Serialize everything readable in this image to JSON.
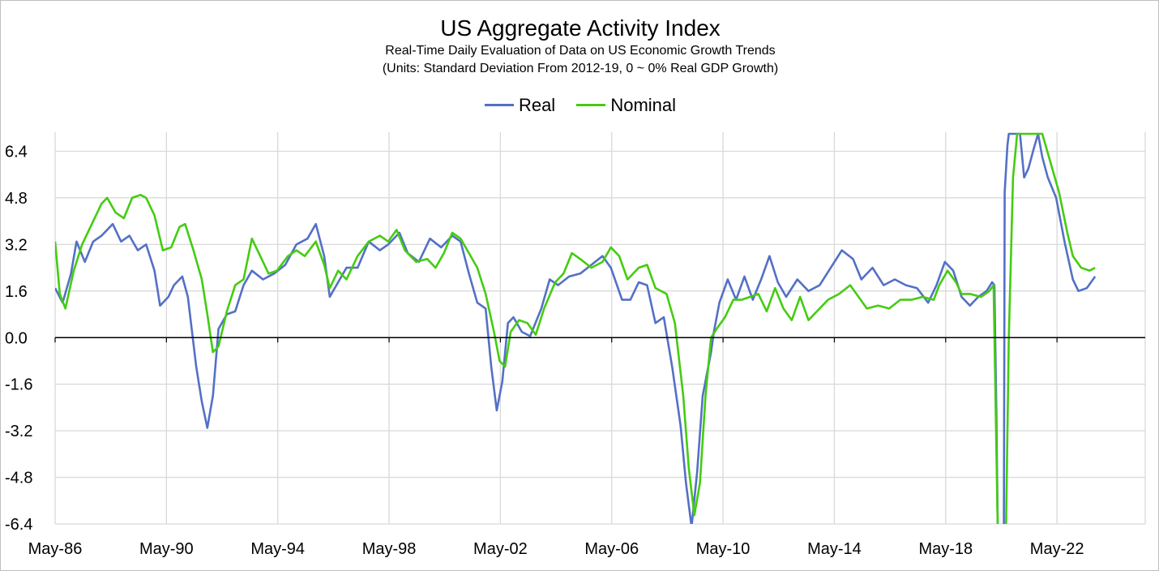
{
  "chart_data": {
    "type": "line",
    "title": "US Aggregate Activity Index",
    "subtitle": "Real-Time Daily Evaluation of Data on US Economic Growth Trends",
    "units_note": "(Units: Standard Deviation From 2012-19, 0 ~ 0% Real GDP Growth)",
    "xlabel": "",
    "ylabel": "",
    "x_ticks": [
      "May-86",
      "May-90",
      "May-94",
      "May-98",
      "May-02",
      "May-06",
      "May-10",
      "May-14",
      "May-18",
      "May-22"
    ],
    "x_tick_years": [
      1986.33,
      1990.33,
      1994.33,
      1998.33,
      2002.33,
      2006.33,
      2010.33,
      2014.33,
      2018.33,
      2022.33
    ],
    "xlim": [
      1986.33,
      2025.5
    ],
    "y_ticks": [
      "6.4",
      "4.8",
      "3.2",
      "1.6",
      "0.0",
      "-1.6",
      "-3.2",
      "-4.8",
      "-6.4"
    ],
    "ylim": [
      -6.4,
      7.0
    ],
    "grid": true,
    "legend_position": "top-center",
    "series": [
      {
        "name": "Real",
        "color": "#5470C6",
        "points": [
          [
            1986.33,
            1.7
          ],
          [
            1986.6,
            1.2
          ],
          [
            1986.9,
            2.2
          ],
          [
            1987.1,
            3.3
          ],
          [
            1987.4,
            2.6
          ],
          [
            1987.7,
            3.3
          ],
          [
            1988.0,
            3.5
          ],
          [
            1988.4,
            3.9
          ],
          [
            1988.7,
            3.3
          ],
          [
            1989.0,
            3.5
          ],
          [
            1989.3,
            3.0
          ],
          [
            1989.6,
            3.2
          ],
          [
            1989.9,
            2.3
          ],
          [
            1990.1,
            1.1
          ],
          [
            1990.4,
            1.4
          ],
          [
            1990.6,
            1.8
          ],
          [
            1990.9,
            2.1
          ],
          [
            1991.1,
            1.4
          ],
          [
            1991.4,
            -1.0
          ],
          [
            1991.6,
            -2.2
          ],
          [
            1991.8,
            -3.1
          ],
          [
            1992.0,
            -2.0
          ],
          [
            1992.2,
            0.3
          ],
          [
            1992.5,
            0.8
          ],
          [
            1992.8,
            0.9
          ],
          [
            1993.1,
            1.8
          ],
          [
            1993.4,
            2.3
          ],
          [
            1993.8,
            2.0
          ],
          [
            1994.2,
            2.2
          ],
          [
            1994.6,
            2.5
          ],
          [
            1995.0,
            3.2
          ],
          [
            1995.4,
            3.4
          ],
          [
            1995.7,
            3.9
          ],
          [
            1996.0,
            2.8
          ],
          [
            1996.2,
            1.4
          ],
          [
            1996.5,
            1.9
          ],
          [
            1996.8,
            2.4
          ],
          [
            1997.2,
            2.4
          ],
          [
            1997.6,
            3.3
          ],
          [
            1998.0,
            3.0
          ],
          [
            1998.3,
            3.2
          ],
          [
            1998.7,
            3.6
          ],
          [
            1999.0,
            2.9
          ],
          [
            1999.4,
            2.6
          ],
          [
            1999.8,
            3.4
          ],
          [
            2000.2,
            3.1
          ],
          [
            2000.6,
            3.5
          ],
          [
            2000.9,
            3.3
          ],
          [
            2001.2,
            2.2
          ],
          [
            2001.5,
            1.2
          ],
          [
            2001.8,
            1.0
          ],
          [
            2002.0,
            -1.0
          ],
          [
            2002.2,
            -2.5
          ],
          [
            2002.4,
            -1.5
          ],
          [
            2002.6,
            0.5
          ],
          [
            2002.8,
            0.7
          ],
          [
            2003.1,
            0.2
          ],
          [
            2003.4,
            0.05
          ],
          [
            2003.8,
            1.0
          ],
          [
            2004.1,
            2.0
          ],
          [
            2004.4,
            1.8
          ],
          [
            2004.8,
            2.1
          ],
          [
            2005.2,
            2.2
          ],
          [
            2005.6,
            2.5
          ],
          [
            2006.0,
            2.8
          ],
          [
            2006.3,
            2.4
          ],
          [
            2006.7,
            1.3
          ],
          [
            2007.0,
            1.3
          ],
          [
            2007.3,
            1.9
          ],
          [
            2007.6,
            1.8
          ],
          [
            2007.9,
            0.5
          ],
          [
            2008.2,
            0.7
          ],
          [
            2008.5,
            -1.0
          ],
          [
            2008.8,
            -3.0
          ],
          [
            2009.0,
            -5.0
          ],
          [
            2009.2,
            -6.5
          ],
          [
            2009.4,
            -4.6
          ],
          [
            2009.6,
            -2.0
          ],
          [
            2009.9,
            -0.5
          ],
          [
            2010.0,
            0.2
          ],
          [
            2010.2,
            1.2
          ],
          [
            2010.5,
            2.0
          ],
          [
            2010.8,
            1.3
          ],
          [
            2011.1,
            2.1
          ],
          [
            2011.4,
            1.3
          ],
          [
            2011.7,
            2.0
          ],
          [
            2012.0,
            2.8
          ],
          [
            2012.3,
            1.9
          ],
          [
            2012.6,
            1.4
          ],
          [
            2013.0,
            2.0
          ],
          [
            2013.4,
            1.6
          ],
          [
            2013.8,
            1.8
          ],
          [
            2014.2,
            2.4
          ],
          [
            2014.6,
            3.0
          ],
          [
            2015.0,
            2.7
          ],
          [
            2015.3,
            2.0
          ],
          [
            2015.7,
            2.4
          ],
          [
            2016.1,
            1.8
          ],
          [
            2016.5,
            2.0
          ],
          [
            2016.9,
            1.8
          ],
          [
            2017.3,
            1.7
          ],
          [
            2017.7,
            1.2
          ],
          [
            2018.0,
            1.8
          ],
          [
            2018.3,
            2.6
          ],
          [
            2018.6,
            2.3
          ],
          [
            2018.9,
            1.4
          ],
          [
            2019.2,
            1.1
          ],
          [
            2019.5,
            1.4
          ],
          [
            2019.8,
            1.6
          ],
          [
            2020.0,
            1.9
          ],
          [
            2020.08,
            1.8
          ],
          [
            2020.15,
            -2.5
          ],
          [
            2020.2,
            -6.5
          ],
          [
            2020.3,
            -6.5
          ],
          [
            2020.42,
            -6.5
          ],
          [
            2020.45,
            5.0
          ],
          [
            2020.55,
            6.6
          ],
          [
            2020.6,
            7.0
          ],
          [
            2021.0,
            7.0
          ],
          [
            2021.15,
            5.5
          ],
          [
            2021.3,
            5.8
          ],
          [
            2021.5,
            6.5
          ],
          [
            2021.65,
            7.0
          ],
          [
            2021.8,
            6.2
          ],
          [
            2022.0,
            5.5
          ],
          [
            2022.3,
            4.8
          ],
          [
            2022.6,
            3.3
          ],
          [
            2022.9,
            2.0
          ],
          [
            2023.1,
            1.6
          ],
          [
            2023.4,
            1.7
          ],
          [
            2023.7,
            2.1
          ]
        ]
      },
      {
        "name": "Nominal",
        "color": "#44CC11",
        "points": [
          [
            1986.33,
            3.3
          ],
          [
            1986.5,
            1.5
          ],
          [
            1986.7,
            1.0
          ],
          [
            1987.0,
            2.3
          ],
          [
            1987.3,
            3.2
          ],
          [
            1987.7,
            4.0
          ],
          [
            1988.0,
            4.6
          ],
          [
            1988.2,
            4.8
          ],
          [
            1988.5,
            4.3
          ],
          [
            1988.8,
            4.1
          ],
          [
            1989.1,
            4.8
          ],
          [
            1989.4,
            4.9
          ],
          [
            1989.6,
            4.8
          ],
          [
            1989.9,
            4.2
          ],
          [
            1990.2,
            3.0
          ],
          [
            1990.5,
            3.1
          ],
          [
            1990.8,
            3.8
          ],
          [
            1991.0,
            3.9
          ],
          [
            1991.3,
            3.0
          ],
          [
            1991.6,
            2.0
          ],
          [
            1991.8,
            0.8
          ],
          [
            1992.0,
            -0.5
          ],
          [
            1992.2,
            -0.3
          ],
          [
            1992.5,
            0.9
          ],
          [
            1992.8,
            1.8
          ],
          [
            1993.1,
            2.0
          ],
          [
            1993.4,
            3.4
          ],
          [
            1993.7,
            2.8
          ],
          [
            1994.0,
            2.2
          ],
          [
            1994.3,
            2.3
          ],
          [
            1994.7,
            2.8
          ],
          [
            1995.0,
            3.0
          ],
          [
            1995.3,
            2.8
          ],
          [
            1995.7,
            3.3
          ],
          [
            1996.0,
            2.5
          ],
          [
            1996.2,
            1.7
          ],
          [
            1996.5,
            2.3
          ],
          [
            1996.8,
            2.0
          ],
          [
            1997.2,
            2.8
          ],
          [
            1997.6,
            3.3
          ],
          [
            1998.0,
            3.5
          ],
          [
            1998.3,
            3.3
          ],
          [
            1998.6,
            3.7
          ],
          [
            1998.9,
            3.0
          ],
          [
            1999.3,
            2.6
          ],
          [
            1999.7,
            2.7
          ],
          [
            2000.0,
            2.4
          ],
          [
            2000.3,
            2.9
          ],
          [
            2000.6,
            3.6
          ],
          [
            2000.9,
            3.4
          ],
          [
            2001.2,
            2.9
          ],
          [
            2001.5,
            2.4
          ],
          [
            2001.8,
            1.5
          ],
          [
            2002.1,
            0.2
          ],
          [
            2002.3,
            -0.8
          ],
          [
            2002.5,
            -1.0
          ],
          [
            2002.7,
            0.2
          ],
          [
            2003.0,
            0.6
          ],
          [
            2003.3,
            0.5
          ],
          [
            2003.6,
            0.1
          ],
          [
            2003.9,
            1.0
          ],
          [
            2004.3,
            1.9
          ],
          [
            2004.6,
            2.2
          ],
          [
            2004.9,
            2.9
          ],
          [
            2005.2,
            2.7
          ],
          [
            2005.6,
            2.4
          ],
          [
            2006.0,
            2.6
          ],
          [
            2006.3,
            3.1
          ],
          [
            2006.6,
            2.8
          ],
          [
            2006.9,
            2.0
          ],
          [
            2007.3,
            2.4
          ],
          [
            2007.6,
            2.5
          ],
          [
            2007.9,
            1.7
          ],
          [
            2008.3,
            1.5
          ],
          [
            2008.6,
            0.5
          ],
          [
            2008.9,
            -2.0
          ],
          [
            2009.1,
            -4.5
          ],
          [
            2009.3,
            -6.1
          ],
          [
            2009.5,
            -5.0
          ],
          [
            2009.7,
            -2.0
          ],
          [
            2009.9,
            0.0
          ],
          [
            2010.1,
            0.3
          ],
          [
            2010.4,
            0.7
          ],
          [
            2010.7,
            1.3
          ],
          [
            2011.0,
            1.3
          ],
          [
            2011.3,
            1.4
          ],
          [
            2011.6,
            1.5
          ],
          [
            2011.9,
            0.9
          ],
          [
            2012.2,
            1.7
          ],
          [
            2012.5,
            1.0
          ],
          [
            2012.8,
            0.6
          ],
          [
            2013.1,
            1.4
          ],
          [
            2013.4,
            0.6
          ],
          [
            2013.8,
            1.0
          ],
          [
            2014.1,
            1.3
          ],
          [
            2014.5,
            1.5
          ],
          [
            2014.9,
            1.8
          ],
          [
            2015.2,
            1.4
          ],
          [
            2015.5,
            1.0
          ],
          [
            2015.9,
            1.1
          ],
          [
            2016.3,
            1.0
          ],
          [
            2016.7,
            1.3
          ],
          [
            2017.1,
            1.3
          ],
          [
            2017.5,
            1.4
          ],
          [
            2017.9,
            1.3
          ],
          [
            2018.1,
            1.8
          ],
          [
            2018.4,
            2.3
          ],
          [
            2018.7,
            1.9
          ],
          [
            2018.9,
            1.5
          ],
          [
            2019.2,
            1.5
          ],
          [
            2019.6,
            1.4
          ],
          [
            2019.9,
            1.6
          ],
          [
            2020.05,
            1.8
          ],
          [
            2020.2,
            -6.5
          ],
          [
            2020.35,
            -6.5
          ],
          [
            2020.5,
            -6.5
          ],
          [
            2020.6,
            0.0
          ],
          [
            2020.75,
            5.5
          ],
          [
            2020.9,
            7.0
          ],
          [
            2021.3,
            7.0
          ],
          [
            2021.8,
            7.0
          ],
          [
            2022.1,
            6.0
          ],
          [
            2022.4,
            5.0
          ],
          [
            2022.7,
            3.6
          ],
          [
            2022.9,
            2.8
          ],
          [
            2023.2,
            2.4
          ],
          [
            2023.5,
            2.3
          ],
          [
            2023.7,
            2.4
          ]
        ]
      }
    ]
  }
}
